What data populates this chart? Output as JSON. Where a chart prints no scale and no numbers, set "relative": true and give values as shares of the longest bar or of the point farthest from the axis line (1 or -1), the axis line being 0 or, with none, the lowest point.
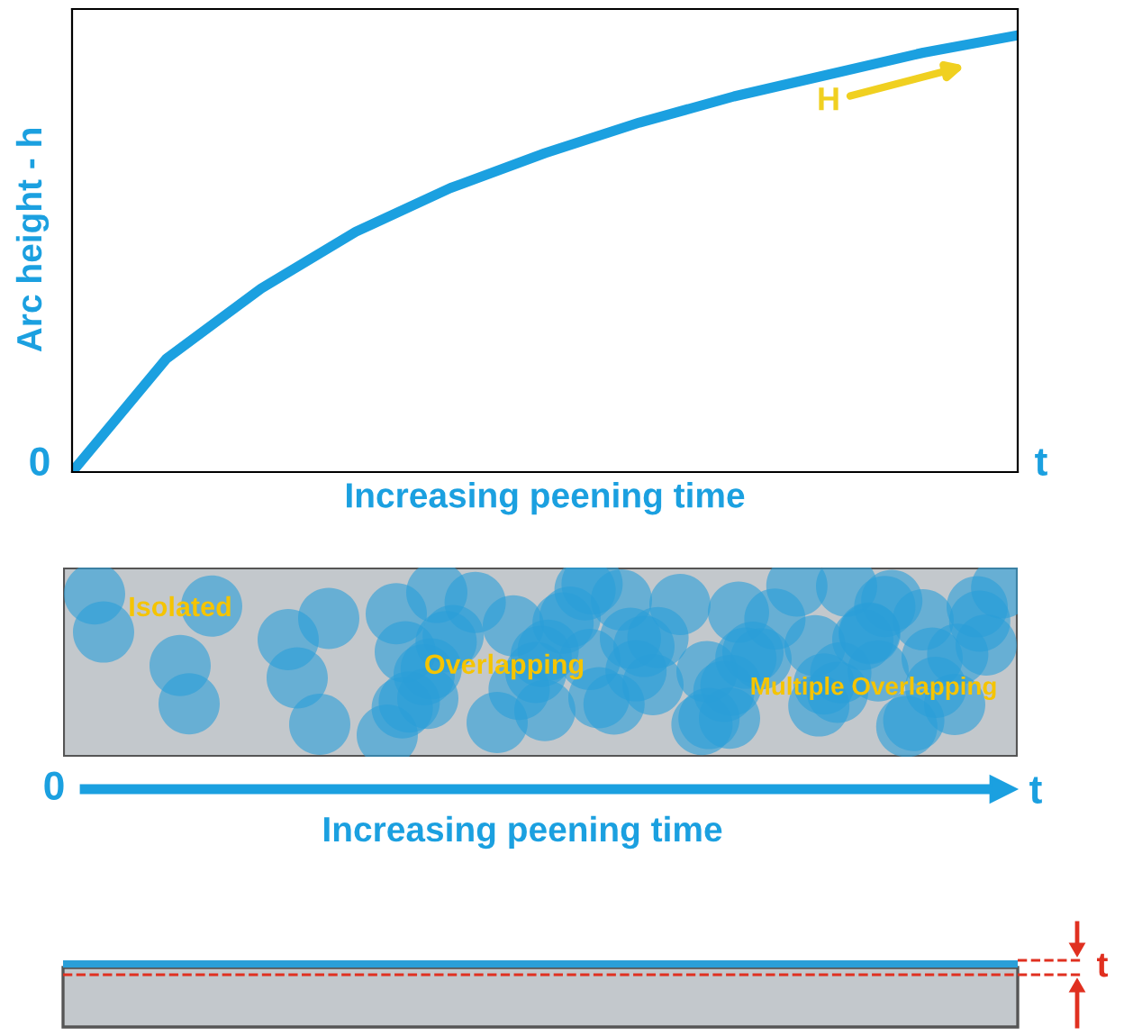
{
  "chart_data": {
    "type": "line",
    "relative": true,
    "ylabel": "Arc height - h",
    "xlabel": "Increasing peening time",
    "categories": [
      null,
      null,
      null,
      null,
      null,
      null,
      null,
      null,
      null,
      null,
      null
    ],
    "series": [
      {
        "color": "#1ba0e0",
        "values": [
          0,
          0.26,
          0.42,
          0.55,
          0.65,
          0.73,
          0.8,
          0.86,
          0.91,
          0.96,
          1.0
        ]
      }
    ],
    "annotations": [
      "0",
      "t",
      "H",
      "Isolated",
      "Overlapping",
      "Multiple Overlapping",
      "0",
      "t",
      "Increasing peening time",
      "t"
    ]
  }
}
